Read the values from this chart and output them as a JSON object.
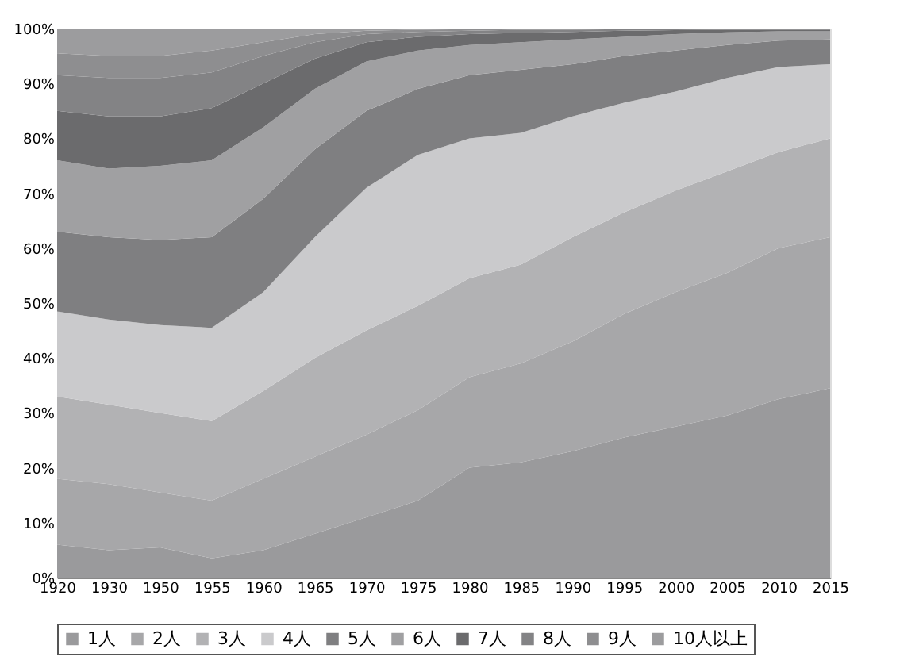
{
  "chart_data": {
    "type": "area",
    "stacked": true,
    "categories": [
      "1920",
      "1930",
      "1950",
      "1955",
      "1960",
      "1965",
      "1970",
      "1975",
      "1980",
      "1985",
      "1990",
      "1995",
      "2000",
      "2005",
      "2010",
      "2015"
    ],
    "series": [
      {
        "name": "1人",
        "color": "#9a9a9c",
        "values": [
          6,
          5,
          5.5,
          3.5,
          5,
          8,
          11,
          14,
          20,
          21,
          23,
          25.5,
          27.5,
          29.5,
          32.5,
          34.5
        ]
      },
      {
        "name": "2人",
        "color": "#a7a7a9",
        "values": [
          12,
          12,
          10,
          10.5,
          13,
          14,
          15,
          16.5,
          16.5,
          18,
          20,
          22.5,
          24.5,
          26,
          27.5,
          27.5
        ]
      },
      {
        "name": "3人",
        "color": "#b2b2b4",
        "values": [
          15,
          14.5,
          14.5,
          14.5,
          16,
          18,
          19,
          19,
          18,
          18,
          19,
          18.5,
          18.5,
          18.5,
          17.5,
          18
        ]
      },
      {
        "name": "4人",
        "color": "#cacacc",
        "values": [
          15.5,
          15.5,
          16,
          17,
          18,
          22,
          26,
          27.5,
          25.5,
          24,
          22,
          20,
          18,
          17,
          15.5,
          13.5
        ]
      },
      {
        "name": "5人",
        "color": "#7f7f81",
        "values": [
          14.5,
          15,
          15.5,
          16.5,
          17,
          16,
          14,
          12,
          11.5,
          11.5,
          9.5,
          8.5,
          7.5,
          6,
          4.8,
          4.5
        ]
      },
      {
        "name": "6人",
        "color": "#a0a0a2",
        "values": [
          13,
          12.5,
          13.5,
          14,
          13,
          11,
          9,
          7,
          5.5,
          5,
          4.5,
          3.5,
          3,
          2.3,
          1.7,
          1.5
        ]
      },
      {
        "name": "7人",
        "color": "#6b6b6d",
        "values": [
          9,
          9.5,
          9,
          9.5,
          8,
          5.5,
          3.5,
          2.5,
          2,
          1.7,
          1.4,
          1.1,
          0.7,
          0.5,
          0.3,
          0.3
        ]
      },
      {
        "name": "8人",
        "color": "#838385",
        "values": [
          6.5,
          7,
          7,
          6.5,
          5,
          3,
          1.5,
          0.9,
          0.6,
          0.6,
          0.4,
          0.3,
          0.2,
          0.1,
          0.1,
          0.1
        ]
      },
      {
        "name": "9人",
        "color": "#8e8e90",
        "values": [
          4,
          4,
          4,
          4,
          2.5,
          1.5,
          0.6,
          0.4,
          0.3,
          0.1,
          0.1,
          0.1,
          0.1,
          0.1,
          0.1,
          0.1
        ]
      },
      {
        "name": "10人以上",
        "color": "#9c9c9e",
        "values": [
          4.5,
          5,
          5,
          4,
          2.5,
          1,
          0.4,
          0.2,
          0.1,
          0.1,
          0.1,
          0,
          0,
          0,
          0,
          0
        ]
      }
    ],
    "ylim": [
      0,
      100
    ],
    "yticks": [
      {
        "value": 0,
        "label": "0%"
      },
      {
        "value": 10,
        "label": "10%"
      },
      {
        "value": 20,
        "label": "20%"
      },
      {
        "value": 30,
        "label": "30%"
      },
      {
        "value": 40,
        "label": "40%"
      },
      {
        "value": 50,
        "label": "50%"
      },
      {
        "value": 60,
        "label": "60%"
      },
      {
        "value": 70,
        "label": "70%"
      },
      {
        "value": 80,
        "label": "80%"
      },
      {
        "value": 90,
        "label": "90%"
      },
      {
        "value": 100,
        "label": "100%"
      }
    ],
    "grid": false,
    "legend": "bottom"
  }
}
